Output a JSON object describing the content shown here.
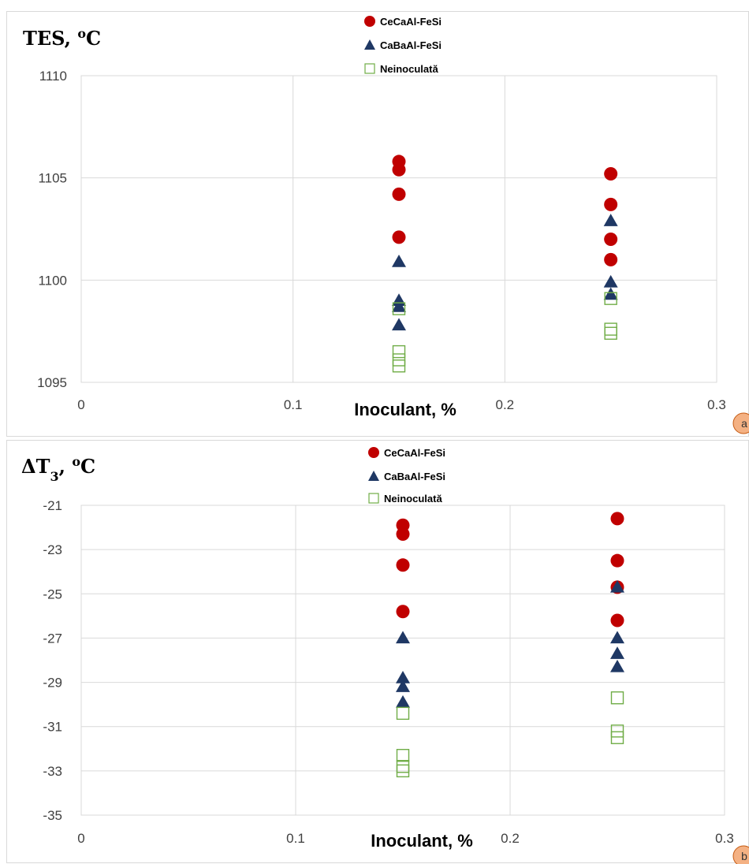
{
  "colors": {
    "cecaal": "#C00000",
    "cabaal": "#1F3864",
    "neinoculata": "#70AD47",
    "grid": "#d9d9d9",
    "badge": "#F4B183"
  },
  "chart_data": [
    {
      "type": "scatter",
      "panel_label": "a",
      "ylabel": "TES, ",
      "ylabel_sup": "o",
      "ylabel_unit": "C",
      "xlabel": "Inoculant, %",
      "xlim": [
        0,
        0.3
      ],
      "ylim": [
        1095,
        1110
      ],
      "xticks": [
        "0",
        "0.1",
        "0.2",
        "0.3"
      ],
      "yticks": [
        "1110",
        "1105",
        "1100",
        "1095"
      ],
      "legend_position": "top-center",
      "grid": true,
      "series": [
        {
          "name": "CeCaAl-FeSi",
          "marker": "circle",
          "color_key": "cecaal",
          "x": [
            0.15,
            0.15,
            0.15,
            0.15,
            0.25,
            0.25,
            0.25,
            0.25
          ],
          "y": [
            1105.8,
            1105.4,
            1104.2,
            1102.1,
            1105.2,
            1103.7,
            1102.0,
            1101.0
          ]
        },
        {
          "name": "CaBaAl-FeSi",
          "marker": "triangle",
          "color_key": "cabaal",
          "x": [
            0.15,
            0.15,
            0.15,
            0.15,
            0.25,
            0.25,
            0.25
          ],
          "y": [
            1100.9,
            1099.0,
            1098.7,
            1097.8,
            1102.9,
            1099.9,
            1099.3
          ]
        },
        {
          "name": "Neinoculată",
          "marker": "square-open",
          "color_key": "neinoculata",
          "x": [
            0.15,
            0.15,
            0.15,
            0.15,
            0.25,
            0.25,
            0.25
          ],
          "y": [
            1098.6,
            1096.5,
            1096.1,
            1095.8,
            1099.1,
            1097.6,
            1097.4
          ]
        }
      ]
    },
    {
      "type": "scatter",
      "panel_label": "b",
      "ylabel": "ΔT",
      "ylabel_sub": "3",
      "ylabel_sep": ", ",
      "ylabel_sup": "o",
      "ylabel_unit": "C",
      "xlabel": "Inoculant, %",
      "xlim": [
        0,
        0.3
      ],
      "ylim": [
        -35,
        -21
      ],
      "xticks": [
        "0",
        "0.1",
        "0.2",
        "0.3"
      ],
      "yticks": [
        "-21",
        "-23",
        "-25",
        "-27",
        "-29",
        "-31",
        "-33",
        "-35"
      ],
      "legend_position": "top-center",
      "grid": true,
      "series": [
        {
          "name": "CeCaAl-FeSi",
          "marker": "circle",
          "color_key": "cecaal",
          "x": [
            0.15,
            0.15,
            0.15,
            0.15,
            0.25,
            0.25,
            0.25,
            0.25
          ],
          "y": [
            -21.9,
            -22.3,
            -23.7,
            -25.8,
            -21.6,
            -23.5,
            -24.7,
            -26.2
          ]
        },
        {
          "name": "CaBaAl-FeSi",
          "marker": "triangle",
          "color_key": "cabaal",
          "x": [
            0.15,
            0.15,
            0.15,
            0.15,
            0.25,
            0.25,
            0.25,
            0.25
          ],
          "y": [
            -27.0,
            -28.8,
            -29.2,
            -29.9,
            -24.7,
            -27.0,
            -27.7,
            -28.3
          ]
        },
        {
          "name": "Neinoculată",
          "marker": "square-open",
          "color_key": "neinoculata",
          "x": [
            0.15,
            0.15,
            0.15,
            0.15,
            0.25,
            0.25,
            0.25
          ],
          "y": [
            -30.4,
            -32.3,
            -32.8,
            -33.0,
            -29.7,
            -31.2,
            -31.5
          ]
        }
      ]
    }
  ]
}
